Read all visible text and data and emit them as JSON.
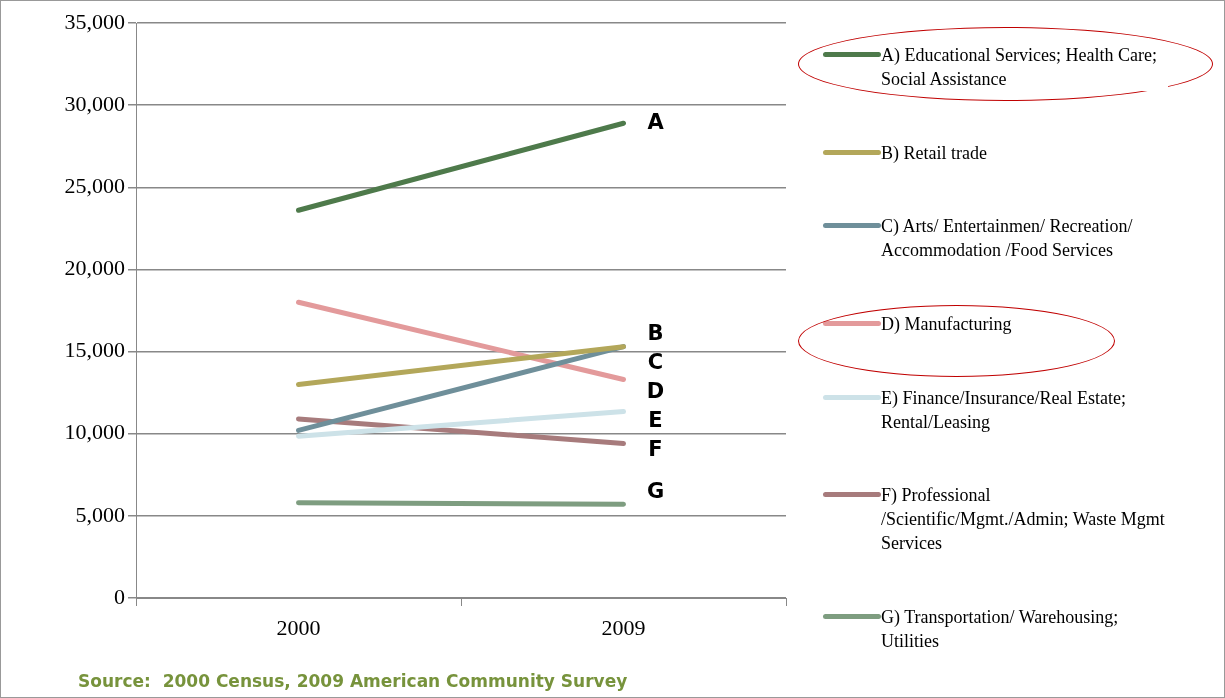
{
  "chart_data": {
    "type": "line",
    "categories": [
      "2000",
      "2009"
    ],
    "ylim": [
      0,
      35000
    ],
    "yticks": [
      0,
      {
        "value": 5000,
        "label": "5,000"
      },
      {
        "value": 10000,
        "label": "10,000"
      },
      {
        "value": 15000,
        "label": "15,000"
      },
      {
        "value": 20000,
        "label": "20,000"
      },
      {
        "value": 25000,
        "label": "25,000"
      },
      {
        "value": 30000,
        "label": "30,000"
      },
      {
        "value": 35000,
        "label": "35,000"
      }
    ],
    "grid": "y",
    "legend": "right",
    "marker": "none",
    "line_style": "solid",
    "series": [
      {
        "name": "A) Educational Services; Health Care; Social Assistance",
        "color": "#4e7a4b",
        "values": [
          23600,
          28900
        ]
      },
      {
        "name": "B) Retail trade",
        "color": "#b3a75a",
        "values": [
          13000,
          15300
        ]
      },
      {
        "name": "C) Arts/ Entertainmen/ Recreation/ Accommodation /Food Services",
        "color": "#6f8f9a",
        "values": [
          10200,
          15300
        ]
      },
      {
        "name": "D) Manufacturing",
        "color": "#e39a9b",
        "values": [
          18000,
          13300
        ]
      },
      {
        "name": "E) Finance/Insurance/Real Estate; Rental/Leasing",
        "color": "#cde2e8",
        "values": [
          9850,
          11350
        ]
      },
      {
        "name": "F) Professional /Scientific/Mgmt./Admin; Waste Mgmt Services",
        "color": "#a77b7c",
        "values": [
          10900,
          9400
        ]
      },
      {
        "name": "G) Transportation/ Warehousing; Utilities",
        "color": "#7e9d80",
        "values": [
          5800,
          5700
        ]
      }
    ],
    "annotations": [
      {
        "text": "A",
        "x": "2009",
        "y": 28900
      },
      {
        "text": "B",
        "x": "2009",
        "y": 15300
      },
      {
        "text": "C",
        "x": "2009",
        "y": 15300
      },
      {
        "text": "D",
        "x": "2009",
        "y": 13300
      },
      {
        "text": "E",
        "x": "2009",
        "y": 11350
      },
      {
        "text": "F",
        "x": "2009",
        "y": 9400
      },
      {
        "text": "G",
        "x": "2009",
        "y": 5700
      },
      "Source:  2000 Census, 2009 American Community Survey"
    ]
  }
}
